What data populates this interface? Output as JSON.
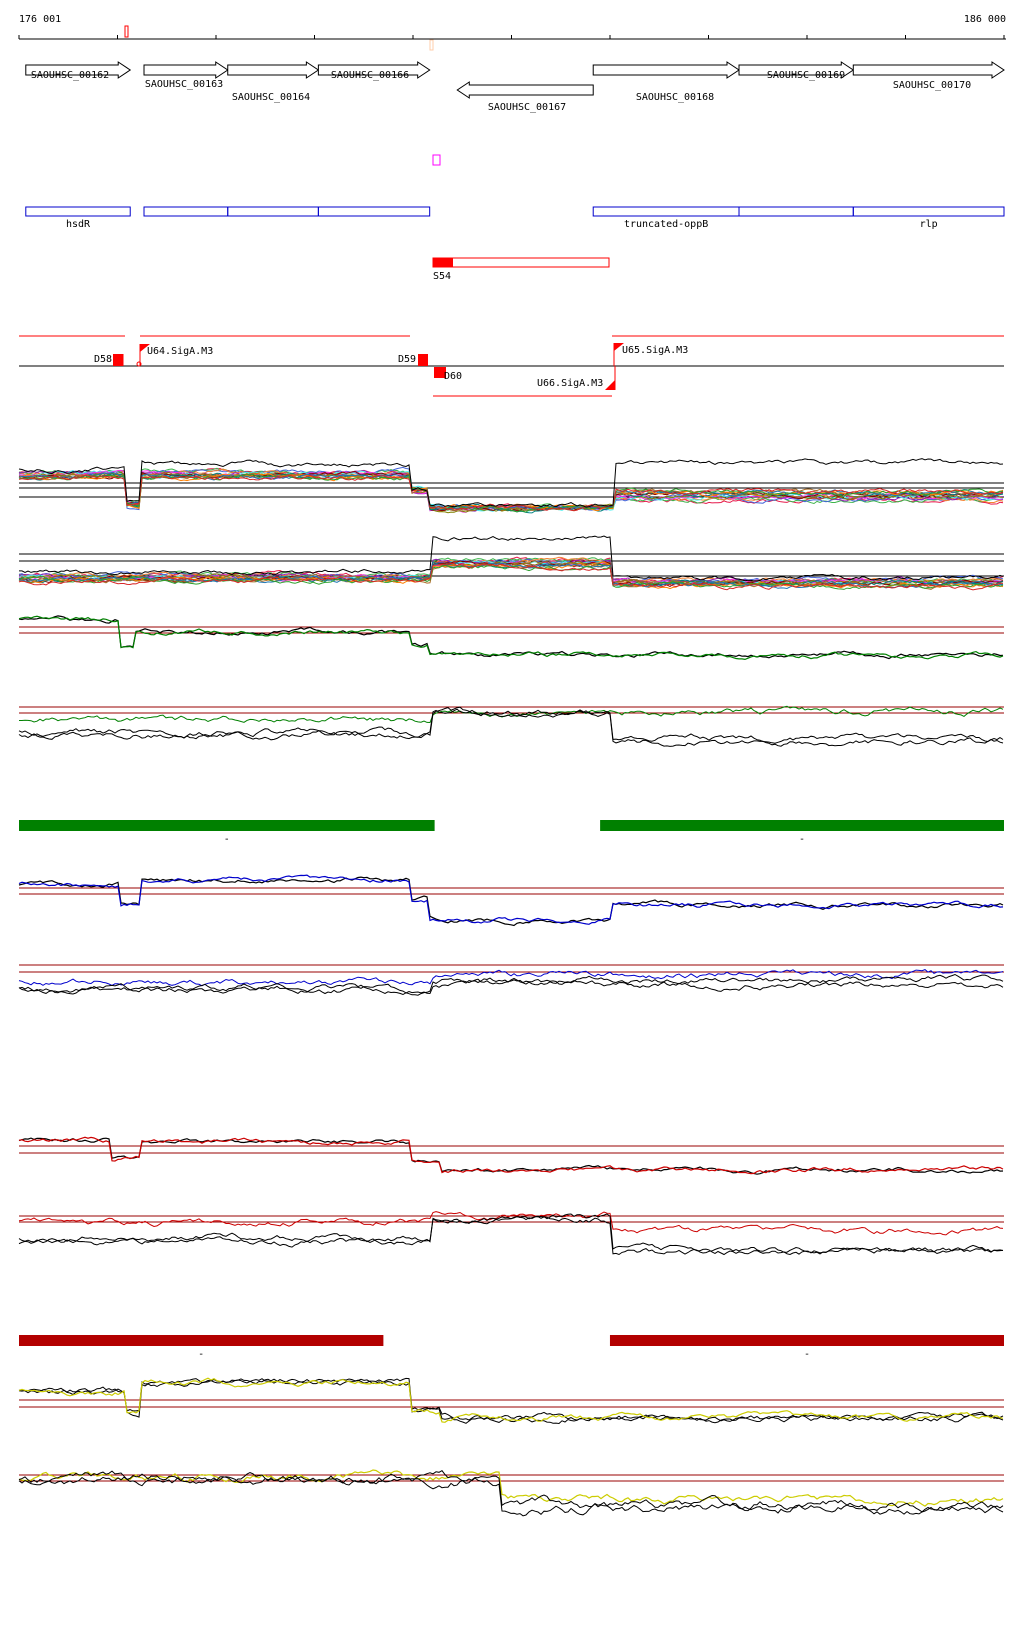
{
  "coordinates": {
    "start_label": "176 001",
    "end_label": "186 000",
    "start": 176001,
    "end": 186000
  },
  "colors": {
    "gene_outline": "#000000",
    "annotation_outline": "#0000cc",
    "feature_red": "#ff0000",
    "green_track": "#008000",
    "blue_track": "#0000cc",
    "red_track": "#cc0000",
    "yellow_track": "#cccc00",
    "darkred_bar": "#b30000",
    "threshold_line": "#990000",
    "small_marker": "#ff66ff"
  },
  "genes": [
    {
      "label": "SAOUHSC_00162",
      "strand": "+",
      "start": 176070,
      "end": 177130
    },
    {
      "label": "SAOUHSC_00163",
      "strand": "+",
      "start": 177270,
      "end": 178120
    },
    {
      "label": "SAOUHSC_00164",
      "strand": "+",
      "start": 178120,
      "end": 179040
    },
    {
      "label": "SAOUHSC_00166",
      "strand": "+",
      "start": 179040,
      "end": 180170
    },
    {
      "label": "SAOUHSC_00167",
      "strand": "-",
      "start": 180450,
      "end": 181830
    },
    {
      "label": "SAOUHSC_00168",
      "strand": "+",
      "start": 181830,
      "end": 183310
    },
    {
      "label": "SAOUHSC_00169",
      "strand": "+",
      "start": 183310,
      "end": 184470
    },
    {
      "label": "SAOUHSC_00170",
      "strand": "+",
      "start": 184470,
      "end": 186000
    }
  ],
  "annotations": [
    {
      "label": "hsdR",
      "start": 176070,
      "end": 177130
    },
    {
      "label": "",
      "start": 177270,
      "end": 178120
    },
    {
      "label": "",
      "start": 178120,
      "end": 179040
    },
    {
      "label": "",
      "start": 179040,
      "end": 180170
    },
    {
      "label": "truncated-oppB",
      "start": 181830,
      "end": 183310
    },
    {
      "label": "",
      "start": 183310,
      "end": 184470
    },
    {
      "label": "rlp",
      "start": 184470,
      "end": 186000
    }
  ],
  "feature_s54": {
    "label": "S54",
    "start": 180220,
    "end": 181850
  },
  "promoters": [
    {
      "label": "D58",
      "strand": "+"
    },
    {
      "label": "U64.SigA.M3",
      "strand": "+"
    },
    {
      "label": "D59",
      "strand": "+"
    },
    {
      "label": "D60",
      "strand": "-"
    },
    {
      "label": "U66.SigA.M3",
      "strand": "-"
    },
    {
      "label": "U65.SigA.M3",
      "strand": "+"
    }
  ],
  "segments": {
    "green": [
      {
        "label": "-",
        "start": 176001,
        "end": 180220
      },
      {
        "label": "-",
        "start": 181900,
        "end": 186000
      }
    ],
    "darkred": [
      {
        "label": "-",
        "start": 176001,
        "end": 179700
      },
      {
        "label": "-",
        "start": 182000,
        "end": 186000
      }
    ]
  }
}
